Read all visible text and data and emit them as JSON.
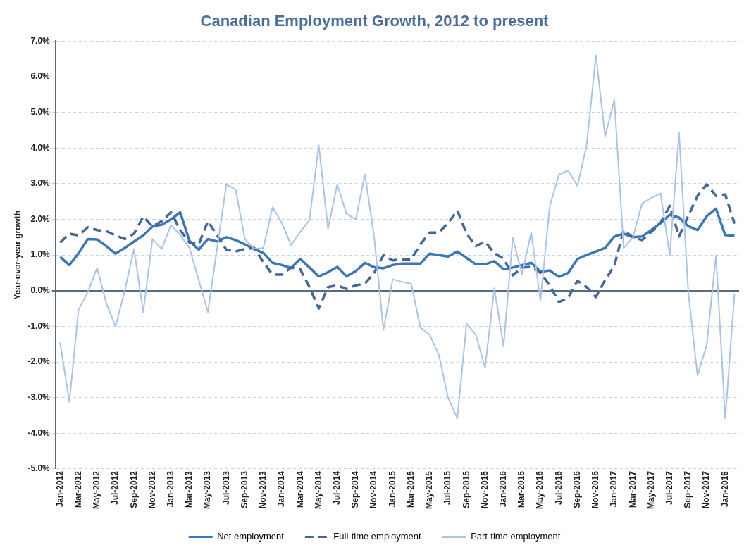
{
  "chart_data": {
    "type": "line",
    "title": "Canadian Employment Growth, 2012 to present",
    "ylabel": "Year-over-year growth",
    "categories": [
      "Jan-2012",
      null,
      "Mar-2012",
      null,
      "May-2012",
      null,
      "Jul-2012",
      null,
      "Sep-2012",
      null,
      "Nov-2012",
      null,
      "Jan-2013",
      null,
      "Mar-2013",
      null,
      "May-2013",
      null,
      "Jul-2013",
      null,
      "Sep-2013",
      null,
      "Nov-2013",
      null,
      "Jan-2014",
      null,
      "Mar-2014",
      null,
      "May-2014",
      null,
      "Jul-2014",
      null,
      "Sep-2014",
      null,
      "Nov-2014",
      null,
      "Jan-2015",
      null,
      "Mar-2015",
      null,
      "May-2015",
      null,
      "Jul-2015",
      null,
      "Sep-2015",
      null,
      "Nov-2015",
      null,
      "Jan-2016",
      null,
      "Mar-2016",
      null,
      "May-2016",
      null,
      "Jul-2016",
      null,
      "Sep-2016",
      null,
      "Nov-2016",
      null,
      "Jan-2017",
      null,
      "Mar-2017",
      null,
      "May-2017",
      null,
      "Jul-2017",
      null,
      "Sep-2017",
      null,
      "Nov-2017",
      null,
      "Jan-2018",
      null
    ],
    "series": [
      {
        "name": "Net employment",
        "color": "#3b76b8",
        "line_style": "solid",
        "values": [
          0.95,
          0.72,
          1.05,
          1.45,
          1.44,
          1.25,
          1.04,
          1.2,
          1.38,
          1.55,
          1.8,
          1.85,
          2.0,
          2.2,
          1.4,
          1.15,
          1.45,
          1.38,
          1.5,
          1.42,
          1.3,
          1.17,
          1.06,
          0.78,
          0.72,
          0.64,
          0.89,
          0.65,
          0.4,
          0.52,
          0.67,
          0.4,
          0.55,
          0.78,
          0.66,
          0.63,
          0.72,
          0.76,
          0.76,
          0.76,
          1.04,
          1.0,
          0.96,
          1.1,
          0.92,
          0.74,
          0.74,
          0.83,
          0.6,
          0.65,
          0.72,
          0.78,
          0.53,
          0.57,
          0.39,
          0.5,
          0.89,
          1.0,
          1.1,
          1.2,
          1.52,
          1.6,
          1.5,
          1.52,
          1.7,
          1.9,
          2.13,
          2.05,
          1.81,
          1.7,
          2.09,
          2.3,
          1.56,
          1.54
        ]
      },
      {
        "name": "Full-time employment",
        "color": "#44679a",
        "line_style": "dashed",
        "values": [
          1.35,
          1.6,
          1.55,
          1.78,
          1.7,
          1.67,
          1.55,
          1.45,
          1.6,
          2.08,
          1.8,
          1.95,
          2.2,
          1.7,
          1.35,
          1.3,
          1.95,
          1.55,
          1.15,
          1.1,
          1.17,
          1.2,
          0.8,
          0.45,
          0.45,
          0.65,
          0.6,
          0.1,
          -0.5,
          0.1,
          0.15,
          0.05,
          0.15,
          0.2,
          0.5,
          1.0,
          0.85,
          0.88,
          0.88,
          1.3,
          1.63,
          1.63,
          1.9,
          2.25,
          1.6,
          1.25,
          1.38,
          1.05,
          0.9,
          0.43,
          0.65,
          0.67,
          0.5,
          0.15,
          -0.32,
          -0.2,
          0.28,
          0.1,
          -0.18,
          0.3,
          0.7,
          1.7,
          1.5,
          1.42,
          1.65,
          1.9,
          2.38,
          1.52,
          2.1,
          2.66,
          2.98,
          2.66,
          2.7,
          1.88
        ]
      },
      {
        "name": "Part-time employment",
        "color": "#aac3e9",
        "line_style": "solid",
        "values": [
          -1.45,
          -3.12,
          -0.53,
          -0.04,
          0.64,
          -0.35,
          -1.0,
          0.0,
          1.17,
          -0.6,
          1.45,
          1.17,
          1.84,
          1.56,
          1.2,
          0.3,
          -0.6,
          1.2,
          2.98,
          2.84,
          1.45,
          1.17,
          1.2,
          2.34,
          1.9,
          1.28,
          1.65,
          1.99,
          4.08,
          1.74,
          2.98,
          2.16,
          2.0,
          3.26,
          1.5,
          -1.1,
          0.32,
          0.25,
          0.2,
          -1.03,
          -1.24,
          -1.8,
          -3.0,
          -3.58,
          -0.92,
          -1.24,
          -2.16,
          0.07,
          -1.56,
          1.49,
          0.46,
          1.63,
          -0.28,
          2.37,
          3.26,
          3.37,
          2.94,
          4.08,
          6.6,
          4.33,
          5.35,
          1.2,
          1.49,
          2.45,
          2.6,
          2.73,
          0.99,
          4.43,
          -0.04,
          -2.38,
          -1.52,
          0.99,
          -3.58,
          -0.1
        ]
      }
    ],
    "ylim": [
      -5,
      7
    ],
    "yticks": [
      {
        "value": -5,
        "label": "-5.0%"
      },
      {
        "value": -4,
        "label": "-4.0%"
      },
      {
        "value": -3,
        "label": "-3.0%"
      },
      {
        "value": -2,
        "label": "-2.0%"
      },
      {
        "value": -1,
        "label": "-1.0%"
      },
      {
        "value": 0,
        "label": "0.0%"
      },
      {
        "value": 1,
        "label": "1.0%"
      },
      {
        "value": 2,
        "label": "2.0%"
      },
      {
        "value": 3,
        "label": "3.0%"
      },
      {
        "value": 4,
        "label": "4.0%"
      },
      {
        "value": 5,
        "label": "5.0%"
      },
      {
        "value": 6,
        "label": "6.0%"
      },
      {
        "value": 7,
        "label": "7.0%"
      }
    ],
    "grid": "y",
    "legend": "bottom",
    "marker": "none"
  }
}
